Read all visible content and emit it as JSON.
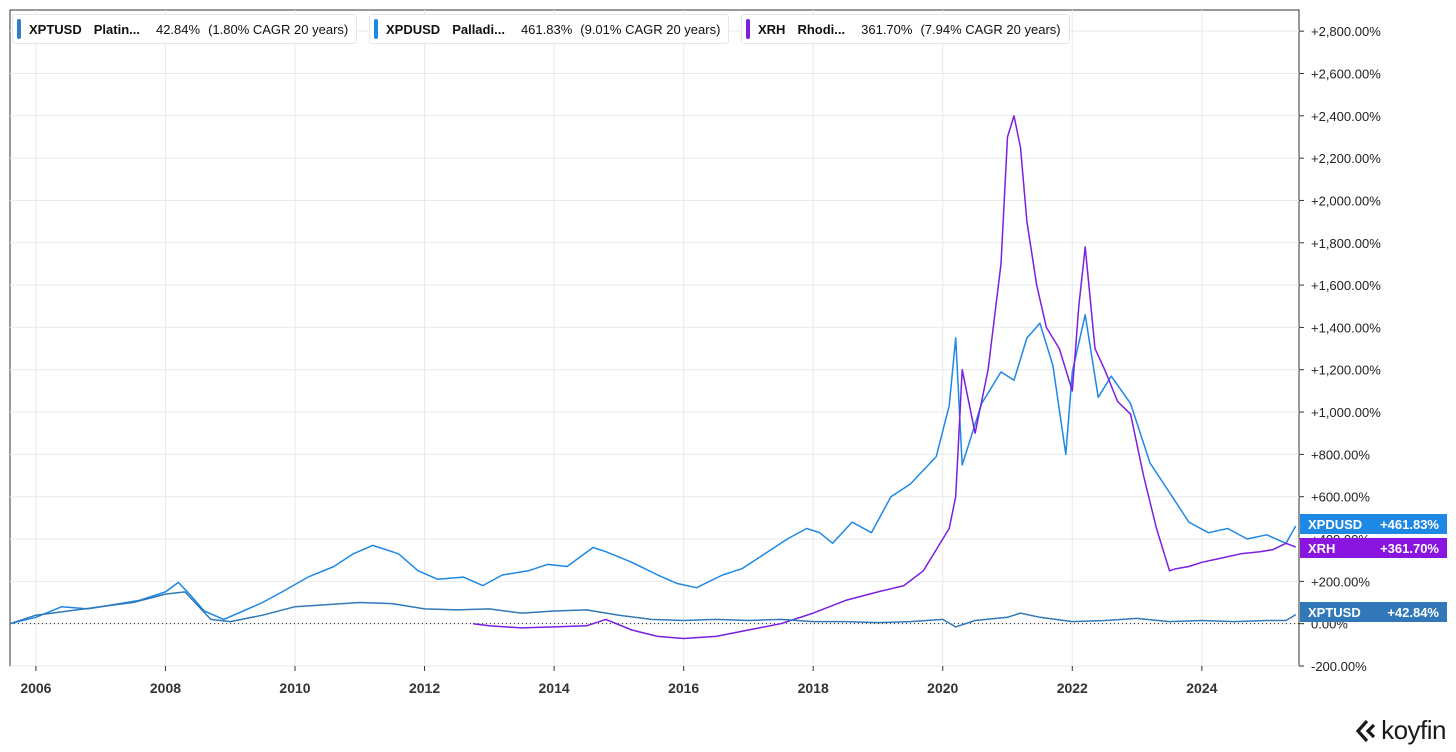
{
  "legend": [
    {
      "symbol": "XPTUSD",
      "name": "Platin...",
      "value": "42.84%",
      "cagr": "(1.80% CAGR 20 years)",
      "color": "#2f7ec7"
    },
    {
      "symbol": "XPDUSD",
      "name": "Palladi...",
      "value": "461.83%",
      "cagr": "(9.01% CAGR 20 years)",
      "color": "#1e88e5"
    },
    {
      "symbol": "XRH",
      "name": "Rhodi...",
      "value": "361.70%",
      "cagr": "(7.94% CAGR 20 years)",
      "color": "#7b1fe0"
    }
  ],
  "badges": [
    {
      "symbol": "XPDUSD",
      "value": "+461.83%",
      "color": "#1e88e5"
    },
    {
      "symbol": "XRH",
      "value": "+361.70%",
      "color": "#8a14e0"
    },
    {
      "symbol": "XPTUSD",
      "value": "+42.84%",
      "color": "#3178b9"
    }
  ],
  "brand": "koyfin",
  "chart_data": {
    "type": "line",
    "title": "",
    "xlabel": "",
    "ylabel": "",
    "xlim": [
      2005.6,
      2025.5
    ],
    "ylim": [
      -200,
      2900
    ],
    "x_ticks": [
      2006,
      2008,
      2010,
      2012,
      2014,
      2016,
      2018,
      2020,
      2022,
      2024
    ],
    "y_ticks": [
      -200,
      0,
      200,
      400,
      600,
      800,
      1000,
      1200,
      1400,
      1600,
      1800,
      2000,
      2200,
      2400,
      2600,
      2800
    ],
    "y_tick_labels": [
      "-200.00%",
      "0.00%",
      "+200.00%",
      "+400.00%",
      "+600.00%",
      "+800.00%",
      "+1,000.00%",
      "+1,200.00%",
      "+1,400.00%",
      "+1,600.00%",
      "+1,800.00%",
      "+2,000.00%",
      "+2,200.00%",
      "+2,400.00%",
      "+2,600.00%",
      "+2,800.00%"
    ],
    "zero_line": "dotted",
    "series": [
      {
        "name": "XPDUSD",
        "color": "#1e88e5",
        "x": [
          2005.6,
          2006.0,
          2006.4,
          2006.8,
          2007.2,
          2007.6,
          2008.0,
          2008.2,
          2008.4,
          2008.6,
          2008.9,
          2009.2,
          2009.5,
          2009.8,
          2010.2,
          2010.6,
          2010.9,
          2011.2,
          2011.6,
          2011.9,
          2012.2,
          2012.6,
          2012.9,
          2013.2,
          2013.6,
          2013.9,
          2014.2,
          2014.6,
          2014.8,
          2015.2,
          2015.6,
          2015.9,
          2016.2,
          2016.6,
          2016.9,
          2017.2,
          2017.6,
          2017.9,
          2018.1,
          2018.3,
          2018.6,
          2018.9,
          2019.2,
          2019.5,
          2019.9,
          2020.1,
          2020.2,
          2020.3,
          2020.6,
          2020.9,
          2021.1,
          2021.3,
          2021.5,
          2021.7,
          2021.9,
          2022.0,
          2022.2,
          2022.4,
          2022.6,
          2022.9,
          2023.2,
          2023.5,
          2023.8,
          2024.1,
          2024.4,
          2024.7,
          2025.0,
          2025.3,
          2025.45
        ],
        "y": [
          0,
          30,
          80,
          70,
          90,
          110,
          150,
          195,
          130,
          60,
          20,
          60,
          100,
          150,
          220,
          270,
          330,
          370,
          330,
          250,
          210,
          220,
          180,
          230,
          250,
          280,
          270,
          360,
          340,
          290,
          230,
          190,
          170,
          230,
          260,
          320,
          400,
          450,
          430,
          380,
          480,
          430,
          600,
          660,
          790,
          1030,
          1350,
          750,
          1040,
          1190,
          1150,
          1350,
          1420,
          1220,
          800,
          1190,
          1460,
          1070,
          1170,
          1040,
          760,
          620,
          480,
          430,
          450,
          400,
          420,
          380,
          461.83
        ]
      },
      {
        "name": "XRH",
        "color": "#7b1fe0",
        "x": [
          2012.75,
          2013.0,
          2013.5,
          2014.0,
          2014.5,
          2014.8,
          2015.2,
          2015.6,
          2016.0,
          2016.5,
          2017.0,
          2017.5,
          2018.0,
          2018.5,
          2019.0,
          2019.4,
          2019.7,
          2019.9,
          2020.1,
          2020.2,
          2020.3,
          2020.5,
          2020.7,
          2020.9,
          2021.0,
          2021.1,
          2021.2,
          2021.3,
          2021.45,
          2021.6,
          2021.8,
          2021.9,
          2022.0,
          2022.1,
          2022.2,
          2022.35,
          2022.5,
          2022.7,
          2022.9,
          2023.1,
          2023.3,
          2023.5,
          2023.6,
          2023.8,
          2024.0,
          2024.3,
          2024.6,
          2024.9,
          2025.1,
          2025.3,
          2025.45
        ],
        "y": [
          0,
          -10,
          -20,
          -15,
          -10,
          20,
          -30,
          -60,
          -70,
          -60,
          -30,
          0,
          50,
          110,
          150,
          180,
          250,
          350,
          450,
          600,
          1200,
          900,
          1200,
          1700,
          2300,
          2400,
          2250,
          1900,
          1600,
          1400,
          1300,
          1200,
          1100,
          1500,
          1780,
          1300,
          1200,
          1050,
          990,
          700,
          450,
          250,
          260,
          270,
          290,
          310,
          330,
          340,
          350,
          380,
          361.7
        ]
      },
      {
        "name": "XPTUSD",
        "color": "#3178b9",
        "x": [
          2005.6,
          2006.0,
          2006.5,
          2007.0,
          2007.5,
          2008.0,
          2008.3,
          2008.7,
          2009.0,
          2009.5,
          2010.0,
          2010.5,
          2011.0,
          2011.5,
          2012.0,
          2012.5,
          2013.0,
          2013.5,
          2014.0,
          2014.5,
          2015.0,
          2015.5,
          2016.0,
          2016.5,
          2017.0,
          2017.5,
          2018.0,
          2018.5,
          2019.0,
          2019.5,
          2020.0,
          2020.2,
          2020.5,
          2021.0,
          2021.2,
          2021.5,
          2022.0,
          2022.5,
          2023.0,
          2023.5,
          2024.0,
          2024.5,
          2025.0,
          2025.3,
          2025.45
        ],
        "y": [
          0,
          40,
          60,
          80,
          100,
          140,
          150,
          20,
          10,
          40,
          80,
          90,
          100,
          95,
          70,
          65,
          70,
          50,
          60,
          65,
          40,
          20,
          15,
          20,
          15,
          20,
          10,
          10,
          5,
          10,
          20,
          -15,
          15,
          30,
          50,
          30,
          10,
          15,
          25,
          10,
          15,
          10,
          15,
          15,
          42.84
        ]
      }
    ]
  }
}
